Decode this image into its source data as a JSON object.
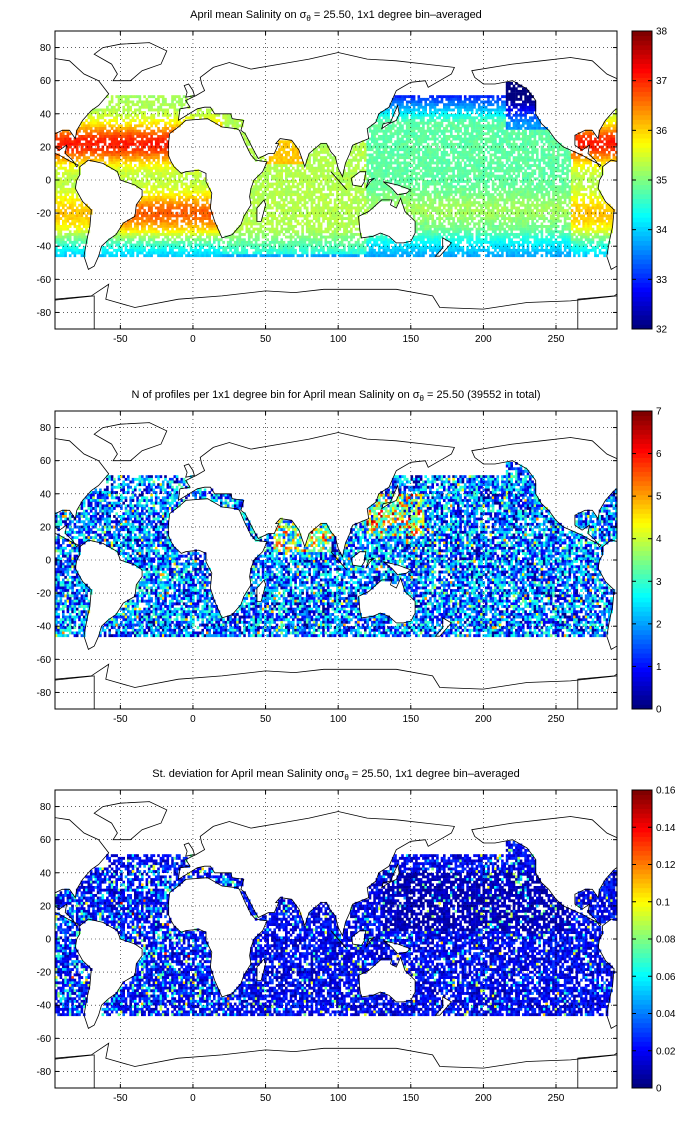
{
  "panels": [
    {
      "title_prefix": "April mean Salinity on σ",
      "title_sub": "θ",
      "title_suffix": " = 25.50, 1x1 degree bin–averaged",
      "colorbar": {
        "min": 32,
        "max": 38,
        "ticks": [
          "32",
          "33",
          "34",
          "35",
          "36",
          "37",
          "38"
        ]
      },
      "field": "salinity"
    },
    {
      "title_prefix": "N of profiles per 1x1 degree bin for April mean Salinity on σ",
      "title_sub": "θ",
      "title_suffix": " = 25.50 (39552 in total)",
      "colorbar": {
        "min": 0,
        "max": 7,
        "ticks": [
          "0",
          "1",
          "2",
          "3",
          "4",
          "5",
          "6",
          "7"
        ]
      },
      "field": "count"
    },
    {
      "title_prefix": "St. deviation for April mean Salinity onσ",
      "title_sub": "θ",
      "title_suffix": " = 25.50, 1x1 degree bin–averaged",
      "colorbar": {
        "min": 0,
        "max": 0.16,
        "ticks": [
          "0",
          "0.02",
          "0.04",
          "0.06",
          "0.08",
          "0.1",
          "0.12",
          "0.14",
          "0.16"
        ]
      },
      "field": "stdev"
    }
  ],
  "axes": {
    "x_ticks": [
      "-50",
      "0",
      "50",
      "100",
      "150",
      "200",
      "250"
    ],
    "y_ticks": [
      "80",
      "60",
      "40",
      "20",
      "0",
      "-20",
      "-40",
      "-60",
      "-80"
    ],
    "xlim": [
      -95,
      292
    ],
    "ylim": [
      -90,
      90
    ]
  },
  "colormap": "jet"
}
